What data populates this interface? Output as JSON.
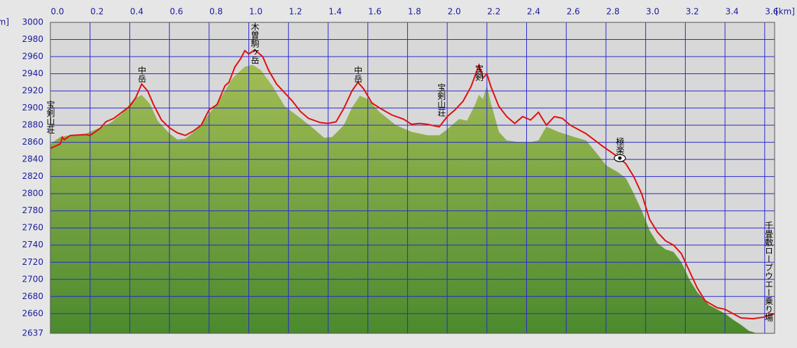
{
  "chart_data": {
    "type": "line",
    "x_label": "[km]",
    "y_label": "[m]",
    "xlim": [
      0,
      3.65
    ],
    "ylim": [
      2637,
      3000
    ],
    "xticks": [
      {
        "value": 0,
        "label": "0.0"
      },
      0.2,
      0.4,
      0.6,
      0.8,
      {
        "value": 1,
        "label": "1.0"
      },
      1.2,
      1.4,
      1.6,
      1.8,
      {
        "value": 2,
        "label": "2.0"
      },
      2.2,
      2.4,
      2.6,
      2.8,
      {
        "value": 3,
        "label": "3.0"
      },
      3.2,
      3.4,
      3.6
    ],
    "yticks": [
      2637,
      2660,
      2680,
      2700,
      2720,
      2740,
      2760,
      2780,
      2800,
      2820,
      2840,
      2860,
      2880,
      2900,
      2920,
      2940,
      2960,
      2980,
      3000
    ],
    "grid": true,
    "series": [
      {
        "kind": "area",
        "color": "#8fae48",
        "x": [
          0.0,
          0.05,
          0.1,
          0.18,
          0.24,
          0.3,
          0.36,
          0.42,
          0.46,
          0.5,
          0.54,
          0.6,
          0.64,
          0.68,
          0.74,
          0.8,
          0.86,
          0.92,
          0.98,
          1.02,
          1.06,
          1.12,
          1.18,
          1.26,
          1.32,
          1.38,
          1.42,
          1.48,
          1.52,
          1.56,
          1.6,
          1.66,
          1.74,
          1.82,
          1.9,
          1.96,
          2.0,
          2.06,
          2.1,
          2.14,
          2.16,
          2.18,
          2.2,
          2.22,
          2.26,
          2.3,
          2.36,
          2.42,
          2.46,
          2.5,
          2.56,
          2.64,
          2.7,
          2.76,
          2.8,
          2.86,
          2.9,
          2.94,
          2.98,
          3.02,
          3.06,
          3.1,
          3.14,
          3.18,
          3.22,
          3.26,
          3.32,
          3.4,
          3.44,
          3.48,
          3.52,
          3.56,
          3.65
        ],
        "values": [
          2858,
          2866,
          2868,
          2870,
          2876,
          2882,
          2893,
          2910,
          2915,
          2905,
          2885,
          2870,
          2863,
          2864,
          2875,
          2893,
          2912,
          2935,
          2948,
          2950,
          2944,
          2925,
          2902,
          2888,
          2877,
          2865,
          2866,
          2880,
          2900,
          2914,
          2910,
          2895,
          2880,
          2872,
          2868,
          2868,
          2875,
          2887,
          2885,
          2903,
          2915,
          2910,
          2925,
          2905,
          2872,
          2862,
          2860,
          2860,
          2862,
          2878,
          2872,
          2866,
          2862,
          2845,
          2833,
          2825,
          2818,
          2800,
          2780,
          2757,
          2742,
          2735,
          2732,
          2720,
          2700,
          2685,
          2670,
          2660,
          2653,
          2647,
          2640,
          2637,
          2637
        ]
      },
      {
        "kind": "line",
        "color": "#e01010",
        "x": [
          0.0,
          0.05,
          0.06,
          0.07,
          0.1,
          0.18,
          0.2,
          0.25,
          0.28,
          0.32,
          0.36,
          0.4,
          0.43,
          0.46,
          0.49,
          0.52,
          0.56,
          0.6,
          0.64,
          0.68,
          0.72,
          0.76,
          0.8,
          0.84,
          0.88,
          0.9,
          0.93,
          0.96,
          0.98,
          1.0,
          1.03,
          1.07,
          1.1,
          1.14,
          1.18,
          1.22,
          1.26,
          1.3,
          1.36,
          1.4,
          1.44,
          1.48,
          1.52,
          1.55,
          1.58,
          1.62,
          1.66,
          1.72,
          1.78,
          1.82,
          1.86,
          1.9,
          1.96,
          2.0,
          2.04,
          2.08,
          2.12,
          2.16,
          2.18,
          2.2,
          2.22,
          2.26,
          2.3,
          2.34,
          2.38,
          2.42,
          2.46,
          2.5,
          2.54,
          2.58,
          2.62,
          2.7,
          2.78,
          2.86,
          2.9,
          2.94,
          2.98,
          3.02,
          3.06,
          3.1,
          3.14,
          3.18,
          3.22,
          3.26,
          3.3,
          3.36,
          3.4,
          3.44,
          3.48,
          3.54,
          3.6,
          3.65
        ],
        "values": [
          2853,
          2858,
          2866,
          2863,
          2868,
          2869,
          2868,
          2876,
          2884,
          2888,
          2895,
          2902,
          2912,
          2928,
          2920,
          2904,
          2886,
          2877,
          2871,
          2868,
          2873,
          2880,
          2898,
          2904,
          2926,
          2930,
          2948,
          2958,
          2967,
          2963,
          2968,
          2960,
          2944,
          2928,
          2918,
          2908,
          2896,
          2888,
          2883,
          2882,
          2884,
          2900,
          2920,
          2930,
          2922,
          2906,
          2900,
          2892,
          2887,
          2881,
          2882,
          2881,
          2878,
          2890,
          2898,
          2908,
          2925,
          2950,
          2935,
          2940,
          2925,
          2902,
          2890,
          2882,
          2890,
          2886,
          2895,
          2880,
          2890,
          2888,
          2880,
          2870,
          2856,
          2843,
          2835,
          2820,
          2800,
          2770,
          2755,
          2745,
          2740,
          2730,
          2710,
          2690,
          2675,
          2667,
          2665,
          2660,
          2655,
          2654,
          2656,
          2660
        ]
      }
    ],
    "annotations": [
      {
        "text": "宝剣山荘",
        "x": 0.0,
        "y": 2909
      },
      {
        "text": "中岳",
        "x": 0.46,
        "y": 2949
      },
      {
        "text": "木曽駒ヶ岳",
        "x": 1.03,
        "y": 3000
      },
      {
        "text": "中岳",
        "x": 1.55,
        "y": 2949
      },
      {
        "text": "宝剣山荘",
        "x": 1.97,
        "y": 2929
      },
      {
        "text": "宝剣",
        "x": 2.16,
        "y": 2951
      },
      {
        "text": "極楽",
        "x": 2.87,
        "y": 2866
      },
      {
        "text": "千畳敷ロープウエー乗り場",
        "x": 3.62,
        "y": 2768
      }
    ]
  }
}
